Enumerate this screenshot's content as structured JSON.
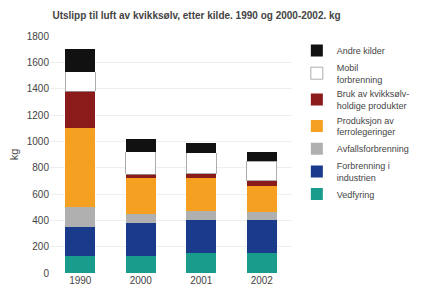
{
  "chart_data": {
    "type": "bar",
    "title": "Utslipp til luft av kvikksølv, etter kilde. 1990 og 2000-2002. kg",
    "ylabel": "kg",
    "categories": [
      "1990",
      "2000",
      "2001",
      "2002"
    ],
    "stacked": true,
    "series": [
      {
        "name": "Vedfyring",
        "color": "#1A9C8C",
        "values": [
          130,
          130,
          150,
          150
        ]
      },
      {
        "name": "Forbrenning i\nindustrien",
        "color": "#1A3A8C",
        "values": [
          220,
          250,
          255,
          250
        ]
      },
      {
        "name": "Avfallsforbrenning",
        "color": "#B0B0B0",
        "values": [
          150,
          70,
          65,
          60
        ]
      },
      {
        "name": "Produksjon av\nferrolegeringer",
        "color": "#F5A020",
        "values": [
          600,
          270,
          255,
          200
        ]
      },
      {
        "name": "Bruk av kvikksølv-\nholdige produkter",
        "color": "#8B1A1A",
        "values": [
          280,
          30,
          30,
          40
        ]
      },
      {
        "name": "Mobil\nforbrenning",
        "color": "#FFFFFF",
        "values": [
          150,
          170,
          160,
          150
        ]
      },
      {
        "name": "Andre kilder",
        "color": "#111111",
        "values": [
          175,
          100,
          75,
          70
        ]
      }
    ],
    "ylim": [
      0,
      1800
    ],
    "yticks": [
      0,
      200,
      400,
      600,
      800,
      1000,
      1200,
      1400,
      1600,
      1800
    ],
    "grid": true,
    "legend": "right"
  }
}
